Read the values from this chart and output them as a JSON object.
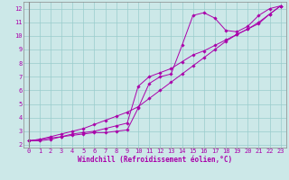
{
  "xlabel": "Windchill (Refroidissement éolien,°C)",
  "bg_color": "#cce8e8",
  "line_color": "#aa00aa",
  "grid_color": "#99cccc",
  "xlim": [
    -0.5,
    23.5
  ],
  "ylim": [
    1.8,
    12.5
  ],
  "xticks": [
    0,
    1,
    2,
    3,
    4,
    5,
    6,
    7,
    8,
    9,
    10,
    11,
    12,
    13,
    14,
    15,
    16,
    17,
    18,
    19,
    20,
    21,
    22,
    23
  ],
  "yticks": [
    2,
    3,
    4,
    5,
    6,
    7,
    8,
    9,
    10,
    11,
    12
  ],
  "line1_x": [
    0,
    1,
    2,
    3,
    4,
    5,
    6,
    7,
    8,
    9,
    10,
    11,
    12,
    13,
    14,
    15,
    16,
    17,
    18,
    19,
    20,
    21,
    22,
    23
  ],
  "line1_y": [
    2.3,
    2.3,
    2.4,
    2.6,
    2.7,
    2.8,
    2.9,
    2.9,
    3.0,
    3.1,
    4.7,
    6.5,
    7.0,
    7.2,
    9.3,
    11.5,
    11.7,
    11.3,
    10.4,
    10.3,
    10.7,
    11.5,
    12.0,
    12.2
  ],
  "line2_x": [
    0,
    1,
    2,
    3,
    4,
    5,
    6,
    7,
    8,
    9,
    10,
    11,
    12,
    13,
    14,
    15,
    16,
    17,
    18,
    19,
    20,
    21,
    22,
    23
  ],
  "line2_y": [
    2.3,
    2.4,
    2.5,
    2.6,
    2.8,
    2.9,
    3.0,
    3.2,
    3.4,
    3.6,
    6.3,
    7.0,
    7.3,
    7.6,
    8.1,
    8.6,
    8.9,
    9.3,
    9.7,
    10.1,
    10.5,
    10.9,
    11.6,
    12.2
  ],
  "line3_x": [
    0,
    1,
    2,
    3,
    4,
    5,
    6,
    7,
    8,
    9,
    10,
    11,
    12,
    13,
    14,
    15,
    16,
    17,
    18,
    19,
    20,
    21,
    22,
    23
  ],
  "line3_y": [
    2.3,
    2.4,
    2.6,
    2.8,
    3.0,
    3.2,
    3.5,
    3.8,
    4.1,
    4.4,
    4.8,
    5.4,
    6.0,
    6.6,
    7.2,
    7.8,
    8.4,
    9.0,
    9.6,
    10.1,
    10.5,
    11.0,
    11.6,
    12.2
  ],
  "tick_fontsize": 5.0,
  "label_fontsize": 5.5,
  "marker": "D",
  "markersize": 1.8,
  "linewidth": 0.7
}
